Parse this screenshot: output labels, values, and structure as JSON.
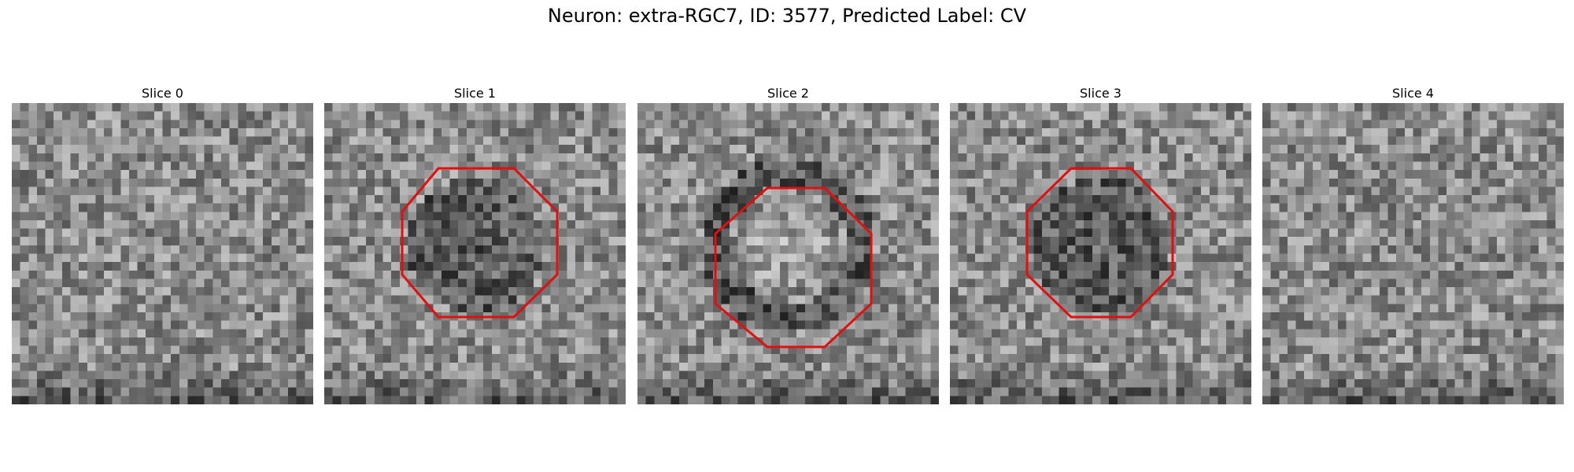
{
  "figure": {
    "title": "Neuron: extra-RGC7, ID: 3577, Predicted Label: CV"
  },
  "overlay_color": "#e01010",
  "panels": [
    {
      "title": "Slice 0",
      "has_outline": false,
      "pattern": "noise"
    },
    {
      "title": "Slice 1",
      "has_outline": true,
      "pattern": "dark-blob"
    },
    {
      "title": "Slice 2",
      "has_outline": true,
      "pattern": "ring"
    },
    {
      "title": "Slice 3",
      "has_outline": true,
      "pattern": "dark-blob"
    },
    {
      "title": "Slice 4",
      "has_outline": false,
      "pattern": "noise"
    }
  ]
}
